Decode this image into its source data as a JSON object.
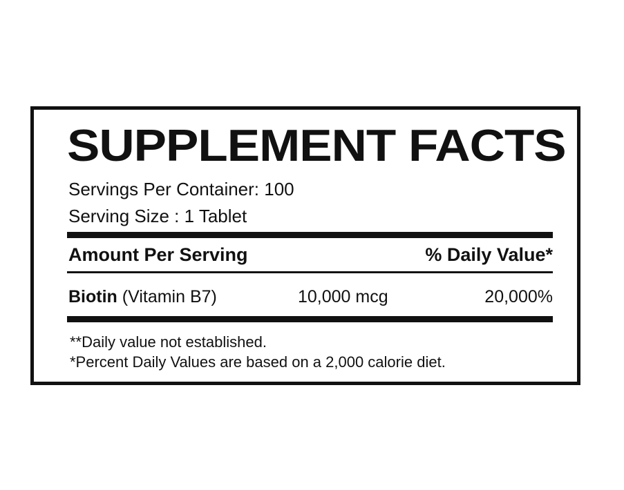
{
  "title": "SUPPLEMENT FACTS",
  "servings_per_container": "Servings Per Container: 100",
  "serving_size": "Serving Size : 1 Tablet",
  "table_header": {
    "amount": "Amount Per Serving",
    "daily_value": "% Daily Value*"
  },
  "nutrients": [
    {
      "name": "Biotin",
      "detail": "(Vitamin B7)",
      "amount": "10,000 mcg",
      "daily_value": "20,000%"
    }
  ],
  "footnotes": [
    "**Daily value not established.",
    "*Percent Daily Values are based on a 2,000 calorie diet."
  ]
}
